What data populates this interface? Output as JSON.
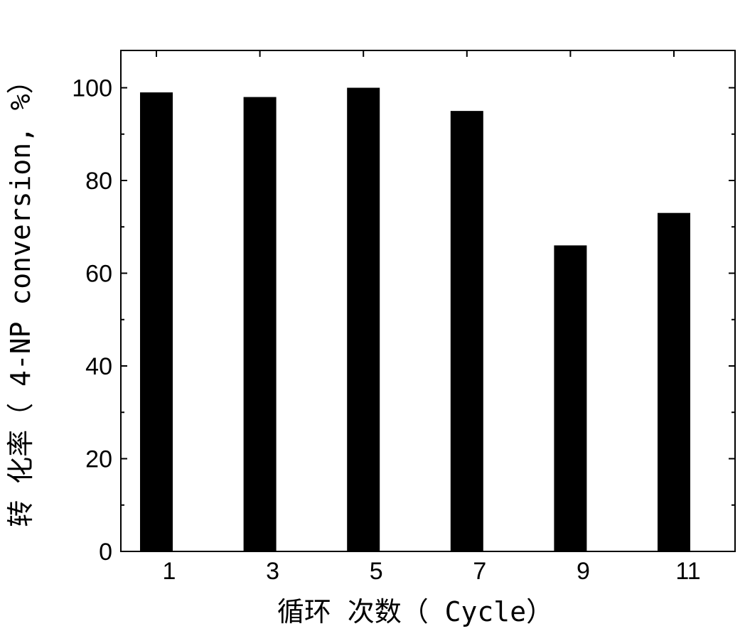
{
  "chart_data": {
    "type": "bar",
    "title": "",
    "xlabel": "循环 次数（ Cycle）",
    "ylabel": "转 化率（ 4-NP conversion, %）",
    "categories": [
      "1",
      "3",
      "5",
      "7",
      "9",
      "11"
    ],
    "values": [
      99,
      98,
      100,
      95,
      66,
      73
    ],
    "ylim": [
      0,
      105
    ],
    "yticks": [
      "0",
      "20",
      "40",
      "60",
      "80",
      "100"
    ],
    "grid": false,
    "legend": "none",
    "bar_color": "#000000"
  }
}
